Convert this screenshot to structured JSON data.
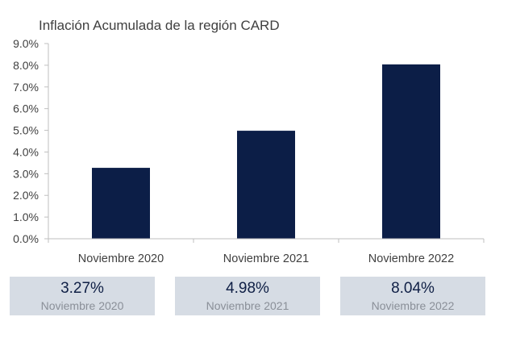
{
  "chart_data": {
    "type": "bar",
    "title": "Inflación Acumulada de la región CARD",
    "categories": [
      "Noviembre 2020",
      "Noviembre 2021",
      "Noviembre 2022"
    ],
    "values": [
      3.27,
      4.98,
      8.04
    ],
    "ylim": [
      0,
      9
    ],
    "yticks": [
      "0.0%",
      "1.0%",
      "2.0%",
      "3.0%",
      "4.0%",
      "5.0%",
      "6.0%",
      "7.0%",
      "8.0%",
      "9.0%"
    ],
    "grid": false,
    "bar_color": "#0c1e47"
  },
  "cards": [
    {
      "value": "3.27%",
      "label": "Noviembre 2020"
    },
    {
      "value": "4.98%",
      "label": "Noviembre 2021"
    },
    {
      "value": "8.04%",
      "label": "Noviembre 2022"
    }
  ]
}
